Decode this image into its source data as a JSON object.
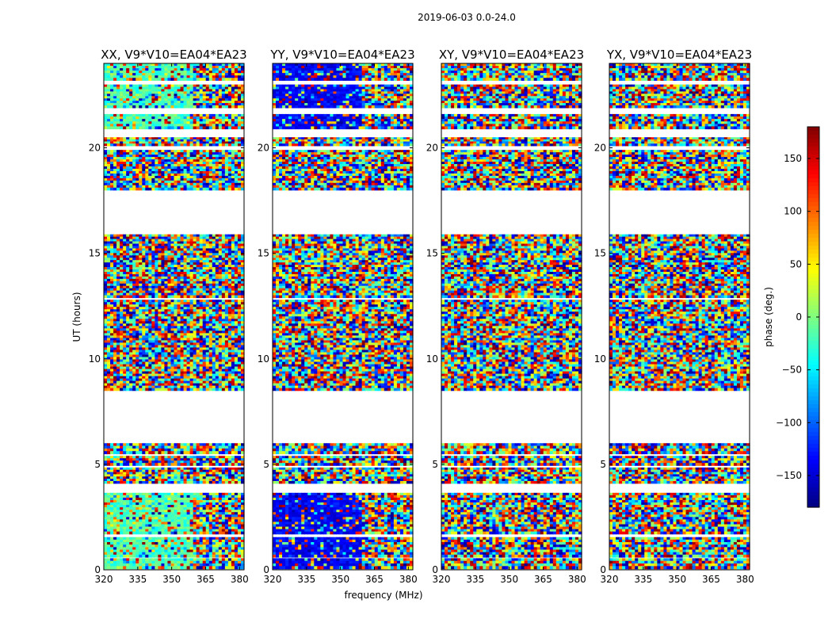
{
  "figure": {
    "suptitle": "2019-06-03 0.0-24.0",
    "xlabel": "frequency (MHz)",
    "ylabel": "UT (hours)",
    "colorbar_label": "phase (deg.)"
  },
  "chart_data": {
    "type": "heatmap",
    "colormap": "jet",
    "panels": [
      {
        "title": "XX, V9*V10=EA04*EA23",
        "pol": "XX"
      },
      {
        "title": "YY, V9*V10=EA04*EA23",
        "pol": "YY"
      },
      {
        "title": "XY, V9*V10=EA04*EA23",
        "pol": "XY"
      },
      {
        "title": "YX, V9*V10=EA04*EA23",
        "pol": "YX"
      }
    ],
    "x_ticks": [
      "320",
      "335",
      "350",
      "365",
      "380"
    ],
    "x_tick_values": [
      320,
      335,
      350,
      365,
      380
    ],
    "xlim": [
      320,
      382
    ],
    "y_ticks": [
      "0",
      "5",
      "10",
      "15",
      "20"
    ],
    "y_tick_values": [
      0,
      5,
      10,
      15,
      20
    ],
    "ylim": [
      0,
      24
    ],
    "clim": [
      -180,
      180
    ],
    "colorbar_ticks": [
      "150",
      "100",
      "50",
      "0",
      "−50",
      "−100",
      "−150"
    ],
    "colorbar_tick_values": [
      150,
      100,
      50,
      0,
      -50,
      -100,
      -150
    ],
    "data_blocks_ut": [
      [
        0.05,
        0.55
      ],
      [
        0.6,
        1.55
      ],
      [
        1.7,
        3.65
      ],
      [
        4.1,
        4.85
      ],
      [
        4.95,
        5.4
      ],
      [
        5.5,
        6.0
      ],
      [
        8.5,
        12.8
      ],
      [
        12.9,
        15.9
      ],
      [
        18.0,
        19.9
      ],
      [
        20.1,
        20.5
      ],
      [
        20.9,
        21.6
      ],
      [
        21.9,
        23.0
      ],
      [
        23.2,
        24.0
      ]
    ],
    "xlabel": "frequency (MHz)",
    "ylabel": "UT (hours)"
  }
}
